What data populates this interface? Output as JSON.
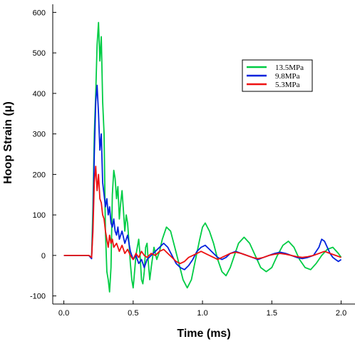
{
  "chart_data": {
    "type": "line",
    "title": "",
    "xlabel": "Time (ms)",
    "ylabel": "Hoop Strain (μ)",
    "xlim": [
      -0.08,
      2.1
    ],
    "ylim": [
      -120,
      620
    ],
    "xticks": [
      "0.0",
      "0.5",
      "1.0",
      "1.5",
      "2.0"
    ],
    "yticks": [
      "-100",
      "0",
      "100",
      "200",
      "300",
      "400",
      "500",
      "600"
    ],
    "grid": false,
    "legend_position": "top-right",
    "series": [
      {
        "name": "13.5MPa",
        "color": "#00cc44",
        "points": [
          [
            0.0,
            0
          ],
          [
            0.18,
            0
          ],
          [
            0.2,
            -5
          ],
          [
            0.21,
            120
          ],
          [
            0.22,
            300
          ],
          [
            0.23,
            400
          ],
          [
            0.24,
            520
          ],
          [
            0.25,
            575
          ],
          [
            0.26,
            480
          ],
          [
            0.27,
            540
          ],
          [
            0.28,
            380
          ],
          [
            0.29,
            300
          ],
          [
            0.3,
            60
          ],
          [
            0.31,
            -40
          ],
          [
            0.32,
            -60
          ],
          [
            0.33,
            -90
          ],
          [
            0.34,
            -30
          ],
          [
            0.35,
            150
          ],
          [
            0.36,
            210
          ],
          [
            0.37,
            190
          ],
          [
            0.38,
            140
          ],
          [
            0.39,
            170
          ],
          [
            0.4,
            90
          ],
          [
            0.41,
            130
          ],
          [
            0.42,
            160
          ],
          [
            0.43,
            110
          ],
          [
            0.44,
            60
          ],
          [
            0.45,
            100
          ],
          [
            0.46,
            80
          ],
          [
            0.47,
            30
          ],
          [
            0.48,
            -20
          ],
          [
            0.49,
            -60
          ],
          [
            0.5,
            -80
          ],
          [
            0.51,
            -40
          ],
          [
            0.52,
            0
          ],
          [
            0.53,
            20
          ],
          [
            0.54,
            40
          ],
          [
            0.55,
            0
          ],
          [
            0.56,
            -60
          ],
          [
            0.57,
            -70
          ],
          [
            0.58,
            -40
          ],
          [
            0.59,
            20
          ],
          [
            0.6,
            30
          ],
          [
            0.61,
            -20
          ],
          [
            0.62,
            -60
          ],
          [
            0.63,
            -30
          ],
          [
            0.65,
            20
          ],
          [
            0.67,
            -10
          ],
          [
            0.69,
            10
          ],
          [
            0.71,
            40
          ],
          [
            0.74,
            70
          ],
          [
            0.77,
            60
          ],
          [
            0.8,
            20
          ],
          [
            0.83,
            -20
          ],
          [
            0.86,
            -60
          ],
          [
            0.89,
            -80
          ],
          [
            0.92,
            -60
          ],
          [
            0.95,
            -10
          ],
          [
            0.98,
            40
          ],
          [
            1.0,
            70
          ],
          [
            1.02,
            80
          ],
          [
            1.05,
            60
          ],
          [
            1.08,
            30
          ],
          [
            1.11,
            -10
          ],
          [
            1.14,
            -40
          ],
          [
            1.17,
            -50
          ],
          [
            1.2,
            -30
          ],
          [
            1.23,
            0
          ],
          [
            1.26,
            30
          ],
          [
            1.3,
            45
          ],
          [
            1.34,
            30
          ],
          [
            1.38,
            0
          ],
          [
            1.42,
            -30
          ],
          [
            1.46,
            -40
          ],
          [
            1.5,
            -30
          ],
          [
            1.54,
            0
          ],
          [
            1.58,
            25
          ],
          [
            1.62,
            35
          ],
          [
            1.66,
            20
          ],
          [
            1.7,
            -10
          ],
          [
            1.74,
            -30
          ],
          [
            1.78,
            -35
          ],
          [
            1.82,
            -20
          ],
          [
            1.86,
            0
          ],
          [
            1.9,
            15
          ],
          [
            1.94,
            20
          ],
          [
            1.98,
            5
          ],
          [
            2.0,
            -5
          ]
        ]
      },
      {
        "name": "9.8MPa",
        "color": "#0022dd",
        "points": [
          [
            0.0,
            0
          ],
          [
            0.18,
            0
          ],
          [
            0.2,
            -8
          ],
          [
            0.21,
            80
          ],
          [
            0.22,
            250
          ],
          [
            0.23,
            380
          ],
          [
            0.24,
            420
          ],
          [
            0.25,
            350
          ],
          [
            0.26,
            260
          ],
          [
            0.27,
            300
          ],
          [
            0.28,
            180
          ],
          [
            0.29,
            150
          ],
          [
            0.3,
            120
          ],
          [
            0.31,
            140
          ],
          [
            0.32,
            100
          ],
          [
            0.33,
            120
          ],
          [
            0.34,
            80
          ],
          [
            0.35,
            70
          ],
          [
            0.36,
            90
          ],
          [
            0.37,
            60
          ],
          [
            0.38,
            50
          ],
          [
            0.39,
            70
          ],
          [
            0.4,
            40
          ],
          [
            0.42,
            60
          ],
          [
            0.44,
            30
          ],
          [
            0.46,
            50
          ],
          [
            0.48,
            10
          ],
          [
            0.5,
            -10
          ],
          [
            0.52,
            0
          ],
          [
            0.54,
            -20
          ],
          [
            0.56,
            -10
          ],
          [
            0.58,
            -30
          ],
          [
            0.6,
            -10
          ],
          [
            0.63,
            0
          ],
          [
            0.66,
            10
          ],
          [
            0.69,
            20
          ],
          [
            0.72,
            30
          ],
          [
            0.75,
            20
          ],
          [
            0.78,
            0
          ],
          [
            0.81,
            -20
          ],
          [
            0.84,
            -30
          ],
          [
            0.87,
            -35
          ],
          [
            0.9,
            -25
          ],
          [
            0.93,
            -10
          ],
          [
            0.96,
            10
          ],
          [
            0.99,
            20
          ],
          [
            1.02,
            25
          ],
          [
            1.05,
            15
          ],
          [
            1.08,
            5
          ],
          [
            1.11,
            -5
          ],
          [
            1.14,
            -10
          ],
          [
            1.17,
            -5
          ],
          [
            1.2,
            5
          ],
          [
            1.24,
            10
          ],
          [
            1.28,
            5
          ],
          [
            1.32,
            0
          ],
          [
            1.36,
            -5
          ],
          [
            1.4,
            -10
          ],
          [
            1.44,
            -5
          ],
          [
            1.48,
            0
          ],
          [
            1.52,
            5
          ],
          [
            1.56,
            8
          ],
          [
            1.6,
            5
          ],
          [
            1.64,
            0
          ],
          [
            1.68,
            -5
          ],
          [
            1.72,
            -8
          ],
          [
            1.76,
            -5
          ],
          [
            1.8,
            0
          ],
          [
            1.84,
            20
          ],
          [
            1.86,
            40
          ],
          [
            1.88,
            35
          ],
          [
            1.9,
            20
          ],
          [
            1.92,
            5
          ],
          [
            1.94,
            -5
          ],
          [
            1.96,
            -10
          ],
          [
            1.98,
            -15
          ],
          [
            2.0,
            -10
          ]
        ]
      },
      {
        "name": "5.3MPa",
        "color": "#ee1111",
        "points": [
          [
            0.0,
            0
          ],
          [
            0.18,
            0
          ],
          [
            0.2,
            -5
          ],
          [
            0.21,
            60
          ],
          [
            0.22,
            180
          ],
          [
            0.23,
            220
          ],
          [
            0.24,
            160
          ],
          [
            0.25,
            200
          ],
          [
            0.26,
            140
          ],
          [
            0.27,
            130
          ],
          [
            0.28,
            100
          ],
          [
            0.29,
            90
          ],
          [
            0.3,
            60
          ],
          [
            0.31,
            40
          ],
          [
            0.32,
            20
          ],
          [
            0.33,
            50
          ],
          [
            0.34,
            30
          ],
          [
            0.35,
            40
          ],
          [
            0.36,
            20
          ],
          [
            0.38,
            30
          ],
          [
            0.4,
            10
          ],
          [
            0.42,
            25
          ],
          [
            0.44,
            5
          ],
          [
            0.46,
            15
          ],
          [
            0.48,
            0
          ],
          [
            0.5,
            -10
          ],
          [
            0.52,
            5
          ],
          [
            0.54,
            -5
          ],
          [
            0.56,
            10
          ],
          [
            0.58,
            0
          ],
          [
            0.6,
            -5
          ],
          [
            0.63,
            5
          ],
          [
            0.66,
            0
          ],
          [
            0.69,
            10
          ],
          [
            0.72,
            15
          ],
          [
            0.75,
            5
          ],
          [
            0.78,
            -5
          ],
          [
            0.81,
            -15
          ],
          [
            0.84,
            -20
          ],
          [
            0.87,
            -15
          ],
          [
            0.9,
            -5
          ],
          [
            0.93,
            0
          ],
          [
            0.96,
            5
          ],
          [
            0.99,
            10
          ],
          [
            1.02,
            5
          ],
          [
            1.05,
            0
          ],
          [
            1.08,
            -5
          ],
          [
            1.11,
            -10
          ],
          [
            1.14,
            -5
          ],
          [
            1.17,
            0
          ],
          [
            1.2,
            5
          ],
          [
            1.24,
            8
          ],
          [
            1.28,
            5
          ],
          [
            1.32,
            0
          ],
          [
            1.36,
            -5
          ],
          [
            1.4,
            -8
          ],
          [
            1.44,
            -5
          ],
          [
            1.48,
            0
          ],
          [
            1.52,
            3
          ],
          [
            1.56,
            5
          ],
          [
            1.6,
            3
          ],
          [
            1.64,
            0
          ],
          [
            1.68,
            -3
          ],
          [
            1.72,
            -5
          ],
          [
            1.76,
            -3
          ],
          [
            1.8,
            0
          ],
          [
            1.84,
            5
          ],
          [
            1.88,
            10
          ],
          [
            1.92,
            5
          ],
          [
            1.96,
            0
          ],
          [
            2.0,
            -5
          ]
        ]
      }
    ]
  }
}
